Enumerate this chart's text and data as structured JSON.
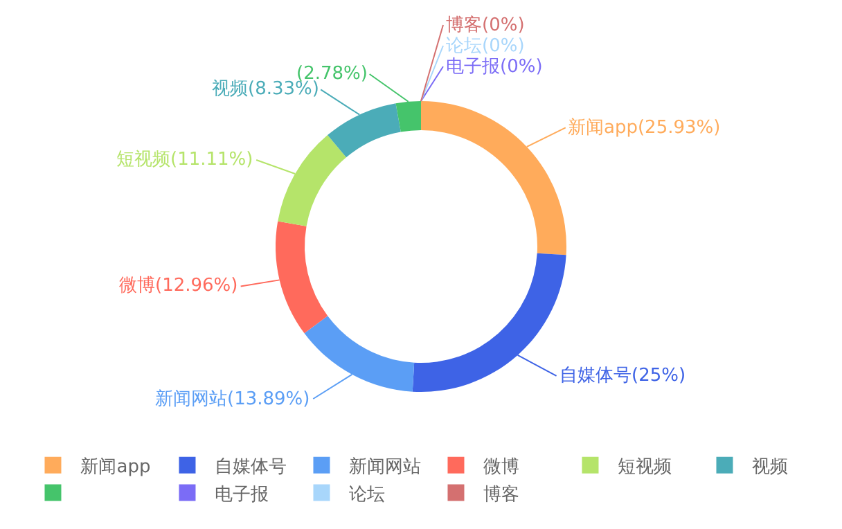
{
  "chart_data": {
    "type": "donut",
    "categories": [
      "新闻app",
      "自媒体号",
      "新闻网站",
      "微博",
      "短视频",
      "视频",
      null,
      "电子报",
      "论坛",
      "博客"
    ],
    "values": [
      25.93,
      25,
      13.89,
      12.96,
      11.11,
      8.33,
      2.78,
      0,
      0,
      0
    ],
    "colors": [
      "#ffab5b",
      "#3e63e6",
      "#5b9ef5",
      "#ff6a5c",
      "#b5e46a",
      "#4bacb8",
      "#45c46b",
      "#7b6cf6",
      "#a8d6fb",
      "#d47070"
    ],
    "value_labels": [
      "新闻app(25.93%)",
      "自媒体号(25%)",
      "新闻网站(13.89%)",
      "微博(12.96%)",
      "短视频(11.11%)",
      "视频(8.33%)",
      "(2.78%)",
      "电子报(0%)",
      "论坛(0%)",
      "博客(0%)"
    ],
    "legend": "bottom"
  }
}
